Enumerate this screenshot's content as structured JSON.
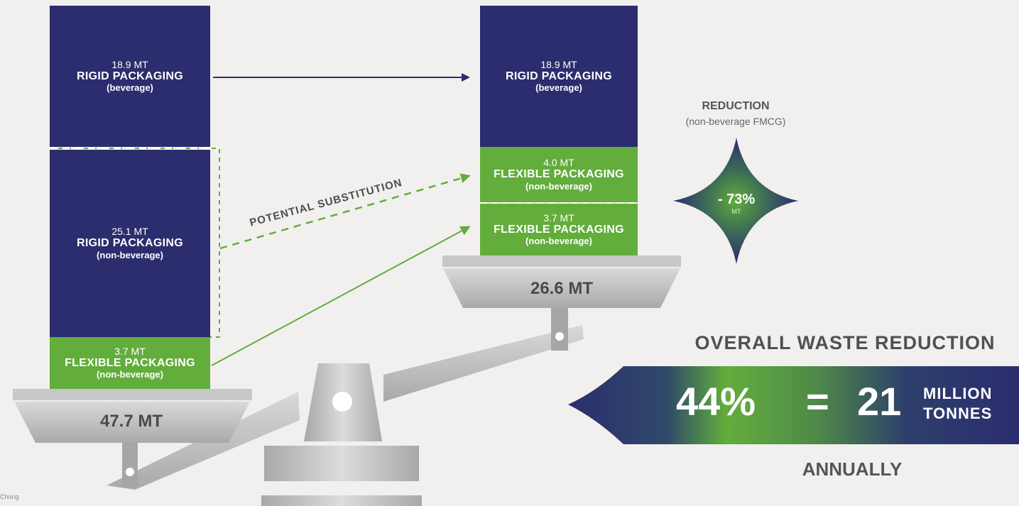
{
  "before": {
    "rigid_beverage": {
      "amount": "18.9 MT",
      "label": "RIGID PACKAGING",
      "sub": "(beverage)"
    },
    "rigid_non_beverage": {
      "amount": "25.1 MT",
      "label": "RIGID PACKAGING",
      "sub": "(non-beverage)"
    },
    "flexible": {
      "amount": "3.7 MT",
      "label": "FLEXIBLE PACKAGING",
      "sub": "(non-beverage)"
    },
    "total": "47.7 MT"
  },
  "after": {
    "rigid_beverage": {
      "amount": "18.9 MT",
      "label": "RIGID PACKAGING",
      "sub": "(beverage)"
    },
    "flexible_substituted": {
      "amount": "4.0 MT",
      "label": "FLEXIBLE PACKAGING",
      "sub": "(non-beverage)"
    },
    "flexible_existing": {
      "amount": "3.7 MT",
      "label": "FLEXIBLE PACKAGING",
      "sub": "(non-beverage)"
    },
    "total": "26.6 MT"
  },
  "substitution_label": "POTENTIAL SUBSTITUTION",
  "reduction": {
    "title": "REDUCTION",
    "subtitle": "(non-beverage FMCG)",
    "value": "- 73%",
    "unit": "MT"
  },
  "overall": {
    "heading": "OVERALL WASTE REDUCTION",
    "percent": "44%",
    "equals": "=",
    "amount": "21",
    "unit_line1": "MILLION",
    "unit_line2": "TONNES",
    "footer": "ANNUALLY"
  },
  "credit": "Chung",
  "colors": {
    "navy": "#2b2d6e",
    "green": "#62ad3c",
    "grey": "#bdbdbd",
    "background": "#f2f0ee"
  }
}
